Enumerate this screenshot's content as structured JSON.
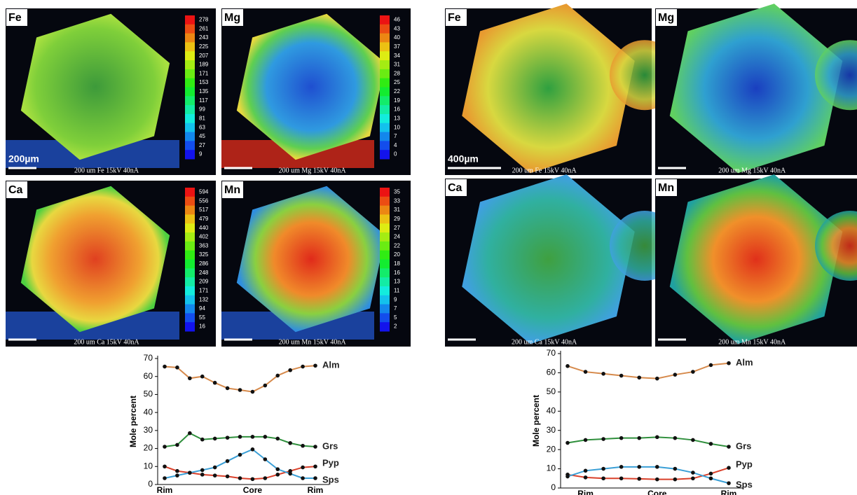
{
  "maps": [
    {
      "label": "Fe",
      "caption": "200 um  Fe  15kV 40nA",
      "scalebar": "200µm",
      "scale": [
        "278",
        "261",
        "243",
        "225",
        "207",
        "189",
        "171",
        "153",
        "135",
        "117",
        "99",
        "81",
        "63",
        "45",
        "27",
        "9"
      ]
    },
    {
      "label": "Mg",
      "caption": "200 um  Mg  15kV 40nA",
      "scale": [
        "46",
        "43",
        "40",
        "37",
        "34",
        "31",
        "28",
        "25",
        "22",
        "19",
        "16",
        "13",
        "10",
        "7",
        "4",
        "0"
      ]
    },
    {
      "label": "Ca",
      "caption": "200 um  Ca  15kV 40nA",
      "scale": [
        "594",
        "556",
        "517",
        "479",
        "440",
        "402",
        "363",
        "325",
        "286",
        "248",
        "209",
        "171",
        "132",
        "94",
        "55",
        "16"
      ]
    },
    {
      "label": "Mn",
      "caption": "200 um  Mn  15kV 40nA",
      "scale": [
        "35",
        "33",
        "31",
        "29",
        "27",
        "24",
        "22",
        "20",
        "18",
        "16",
        "13",
        "11",
        "9",
        "7",
        "5",
        "2"
      ]
    },
    {
      "label": "Fe",
      "caption": "200 um  Fe  15kV 40nA",
      "scalebar": "400µm"
    },
    {
      "label": "Mg",
      "caption": "200 um  Mg  15kV 40nA"
    },
    {
      "label": "Ca",
      "caption": "200 um  Ca  15kV 40nA"
    },
    {
      "label": "Mn",
      "caption": "200 um  Mn  15kV 40nA"
    }
  ],
  "chart_data": [
    {
      "type": "line",
      "y_label": "Mole percent",
      "categories": [
        "Rim",
        null,
        null,
        null,
        null,
        null,
        null,
        "Core",
        null,
        null,
        null,
        null,
        "Rim"
      ],
      "ylim": [
        0,
        70
      ],
      "yticks": [
        0,
        10,
        20,
        30,
        40,
        50,
        60,
        70
      ],
      "series": [
        {
          "name": "Alm",
          "color": "#d68a4c",
          "values": [
            65.5,
            65,
            59,
            60,
            56.5,
            53.5,
            52.5,
            51.5,
            55,
            60.5,
            63.5,
            65.5,
            66
          ]
        },
        {
          "name": "Grs",
          "color": "#2f8f3c",
          "values": [
            21,
            22,
            28.5,
            25,
            25.5,
            26,
            26.5,
            26.5,
            26.5,
            25.5,
            23,
            21.5,
            21
          ]
        },
        {
          "name": "Pyp",
          "color": "#d9402a",
          "values": [
            10,
            7.5,
            6.5,
            5.5,
            5,
            4.5,
            3.5,
            3,
            3.5,
            5.5,
            7.5,
            9.5,
            10
          ]
        },
        {
          "name": "Sps",
          "color": "#3a9fd6",
          "values": [
            3.5,
            5,
            6.5,
            8,
            9.5,
            13,
            16.5,
            19.5,
            14,
            8.5,
            6,
            3.5,
            3.5
          ]
        }
      ]
    },
    {
      "type": "line",
      "y_label": "Mole percent",
      "categories": [
        null,
        "Rim",
        null,
        null,
        null,
        "Core",
        null,
        null,
        null,
        "Rim"
      ],
      "ylim": [
        0,
        70
      ],
      "yticks": [
        0,
        10,
        20,
        30,
        40,
        50,
        60,
        70
      ],
      "series": [
        {
          "name": "Alm",
          "color": "#d68a4c",
          "values": [
            63.5,
            60.5,
            59.5,
            58.5,
            57.5,
            57,
            59,
            60.5,
            64,
            65
          ]
        },
        {
          "name": "Grs",
          "color": "#2f8f3c",
          "values": [
            23.5,
            25,
            25.5,
            26,
            26,
            26.5,
            26,
            25,
            23,
            21.5
          ]
        },
        {
          "name": "Pyp",
          "color": "#d9402a",
          "values": [
            7,
            5.5,
            5,
            5,
            4.8,
            4.5,
            4.5,
            5,
            7.5,
            10.5
          ]
        },
        {
          "name": "Sps",
          "color": "#3a9fd6",
          "values": [
            6,
            9,
            10,
            11,
            11,
            11,
            10,
            8,
            5,
            2.5
          ]
        }
      ]
    }
  ]
}
